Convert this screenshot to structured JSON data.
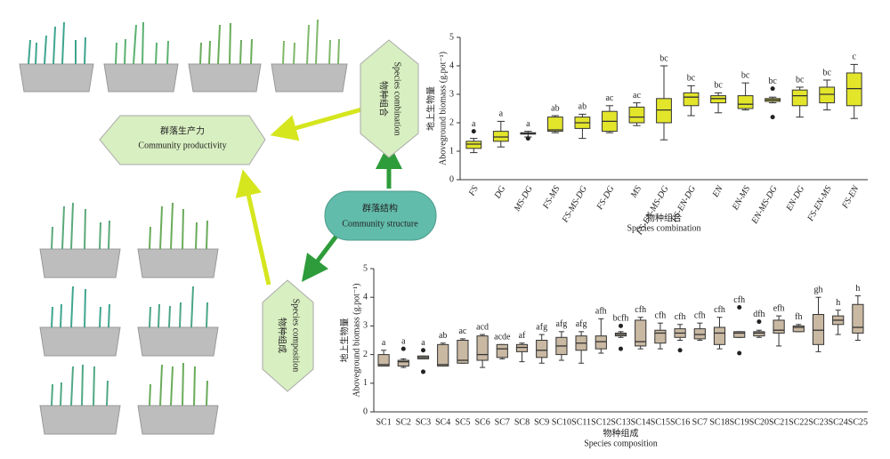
{
  "diagram": {
    "productivity": {
      "zh": "群落生产力",
      "en": "Community productivity"
    },
    "combination": {
      "zh": "物种组合",
      "en": "Species combination"
    },
    "structure": {
      "zh": "群落结构",
      "en": "Community structure"
    },
    "composition": {
      "zh": "物种组成",
      "en": "Species composition"
    }
  },
  "chart_data": [
    {
      "type": "box",
      "color": "#e3e52b",
      "ylabel": [
        "地上生物量",
        "Aboveground biomass (g.pot⁻¹)"
      ],
      "xlabel": [
        "物种组合",
        "Species combination"
      ],
      "ylim": [
        0,
        5
      ],
      "yticks": [
        0,
        1,
        2,
        3,
        4,
        5
      ],
      "categories": [
        "FS",
        "DG",
        "MS-DG",
        "FS-MS",
        "FS-MS-DG",
        "FS-DG",
        "MS",
        "FS-EN-MS-DG",
        "FS-EN-DG",
        "EN",
        "EN-MS",
        "EN-MS-DG",
        "EN-DG",
        "FS-EN-MS",
        "FS-EN"
      ],
      "annotations": [
        "a",
        "a",
        "a",
        "ab",
        "ab",
        "ac",
        "ac",
        "bc",
        "bc",
        "bc",
        "bc",
        "bc",
        "bc",
        "bc",
        "c"
      ],
      "boxes": [
        {
          "min": 0.95,
          "q1": 1.1,
          "median": 1.25,
          "q3": 1.35,
          "max": 1.45,
          "outliers": [
            1.7
          ]
        },
        {
          "min": 1.15,
          "q1": 1.35,
          "median": 1.5,
          "q3": 1.7,
          "max": 2.05
        },
        {
          "min": 1.5,
          "q1": 1.6,
          "median": 1.62,
          "q3": 1.65,
          "max": 1.7,
          "outliers": [
            1.45
          ]
        },
        {
          "min": 1.65,
          "q1": 1.7,
          "median": 1.75,
          "q3": 2.2,
          "max": 2.25
        },
        {
          "min": 1.45,
          "q1": 1.8,
          "median": 2.0,
          "q3": 2.2,
          "max": 2.3
        },
        {
          "min": 1.65,
          "q1": 1.7,
          "median": 2.05,
          "q3": 2.4,
          "max": 2.6
        },
        {
          "min": 1.9,
          "q1": 2.0,
          "median": 2.2,
          "q3": 2.55,
          "max": 2.7
        },
        {
          "min": 1.4,
          "q1": 2.0,
          "median": 2.45,
          "q3": 2.85,
          "max": 4.0
        },
        {
          "min": 2.25,
          "q1": 2.6,
          "median": 2.9,
          "q3": 3.05,
          "max": 3.3
        },
        {
          "min": 2.35,
          "q1": 2.7,
          "median": 2.85,
          "q3": 2.95,
          "max": 3.05
        },
        {
          "min": 2.45,
          "q1": 2.5,
          "median": 2.65,
          "q3": 2.95,
          "max": 3.4
        },
        {
          "min": 2.7,
          "q1": 2.75,
          "median": 2.8,
          "q3": 2.85,
          "max": 2.9,
          "outliers": [
            3.2,
            2.2
          ]
        },
        {
          "min": 2.2,
          "q1": 2.6,
          "median": 2.95,
          "q3": 3.15,
          "max": 3.25
        },
        {
          "min": 2.45,
          "q1": 2.7,
          "median": 3.0,
          "q3": 3.25,
          "max": 3.5
        },
        {
          "min": 2.15,
          "q1": 2.6,
          "median": 3.2,
          "q3": 3.75,
          "max": 4.05
        }
      ]
    },
    {
      "type": "box",
      "color": "#c9b8a2",
      "ylabel": [
        "地上生物量",
        "Aboveground biomass (g.pot⁻¹)"
      ],
      "xlabel": [
        "物种组成",
        "Species composition"
      ],
      "ylim": [
        0,
        5
      ],
      "yticks": [
        0,
        1,
        2,
        3,
        4,
        5
      ],
      "categories": [
        "SC1",
        "SC2",
        "SC3",
        "SC4",
        "SC5",
        "SC6",
        "SC7",
        "SC8",
        "SC9",
        "SC10",
        "SC11",
        "SC12",
        "SC13",
        "SC14",
        "SC15",
        "SC16",
        "SC7",
        "SC18",
        "SC19",
        "SC20",
        "SC21",
        "SC22",
        "SC23",
        "SC24",
        "SC25"
      ],
      "annotations": [
        "a",
        "a",
        "a",
        "ab",
        "ac",
        "acd",
        "acde",
        "af",
        "afg",
        "afg",
        "afg",
        "afh",
        "bcfh",
        "cfh",
        "cfh",
        "cfh",
        "cfh",
        "cfh",
        "cfh",
        "dfh",
        "efh",
        "fh",
        "gh",
        "h",
        "h"
      ],
      "boxes": [
        {
          "min": 1.6,
          "q1": 1.6,
          "median": 1.65,
          "q3": 2.0,
          "max": 2.15
        },
        {
          "min": 1.55,
          "q1": 1.6,
          "median": 1.75,
          "q3": 1.8,
          "max": 1.85,
          "outliers": [
            2.2
          ]
        },
        {
          "min": 1.85,
          "q1": 1.85,
          "median": 1.9,
          "q3": 1.95,
          "max": 1.95,
          "outliers": [
            2.15,
            1.4
          ]
        },
        {
          "min": 1.6,
          "q1": 1.6,
          "median": 1.65,
          "q3": 2.35,
          "max": 2.4
        },
        {
          "min": 1.7,
          "q1": 1.7,
          "median": 1.8,
          "q3": 2.5,
          "max": 2.55
        },
        {
          "min": 1.55,
          "q1": 1.8,
          "median": 2.0,
          "q3": 2.65,
          "max": 2.7
        },
        {
          "min": 1.85,
          "q1": 1.9,
          "median": 2.2,
          "q3": 2.35,
          "max": 2.35
        },
        {
          "min": 1.75,
          "q1": 2.1,
          "median": 2.25,
          "q3": 2.35,
          "max": 2.4
        },
        {
          "min": 1.7,
          "q1": 1.9,
          "median": 2.15,
          "q3": 2.5,
          "max": 2.7
        },
        {
          "min": 1.8,
          "q1": 2.0,
          "median": 2.3,
          "q3": 2.6,
          "max": 2.8
        },
        {
          "min": 1.7,
          "q1": 2.15,
          "median": 2.4,
          "q3": 2.65,
          "max": 2.8
        },
        {
          "min": 2.05,
          "q1": 2.2,
          "median": 2.45,
          "q3": 2.65,
          "max": 3.25
        },
        {
          "min": 2.6,
          "q1": 2.65,
          "median": 2.7,
          "q3": 2.75,
          "max": 2.8,
          "outliers": [
            3.0,
            2.2
          ]
        },
        {
          "min": 2.2,
          "q1": 2.3,
          "median": 2.45,
          "q3": 3.2,
          "max": 3.3
        },
        {
          "min": 2.2,
          "q1": 2.4,
          "median": 2.75,
          "q3": 2.85,
          "max": 3.1
        },
        {
          "min": 2.5,
          "q1": 2.6,
          "median": 2.75,
          "q3": 2.9,
          "max": 3.05,
          "outliers": [
            2.15
          ]
        },
        {
          "min": 2.5,
          "q1": 2.55,
          "median": 2.7,
          "q3": 2.9,
          "max": 3.1
        },
        {
          "min": 2.2,
          "q1": 2.35,
          "median": 2.75,
          "q3": 2.95,
          "max": 3.3
        },
        {
          "min": 2.6,
          "q1": 2.6,
          "median": 2.75,
          "q3": 2.8,
          "max": 2.8,
          "outliers": [
            3.65,
            2.05
          ]
        },
        {
          "min": 2.6,
          "q1": 2.65,
          "median": 2.75,
          "q3": 2.8,
          "max": 2.85,
          "outliers": [
            3.15
          ]
        },
        {
          "min": 2.3,
          "q1": 2.75,
          "median": 2.85,
          "q3": 3.2,
          "max": 3.35
        },
        {
          "min": 2.8,
          "q1": 2.8,
          "median": 2.95,
          "q3": 3.0,
          "max": 3.05
        },
        {
          "min": 2.1,
          "q1": 2.35,
          "median": 2.85,
          "q3": 3.4,
          "max": 4.0
        },
        {
          "min": 2.7,
          "q1": 3.05,
          "median": 3.2,
          "q3": 3.35,
          "max": 3.55
        },
        {
          "min": 2.5,
          "q1": 2.75,
          "median": 2.95,
          "q3": 3.75,
          "max": 4.05
        }
      ]
    }
  ]
}
